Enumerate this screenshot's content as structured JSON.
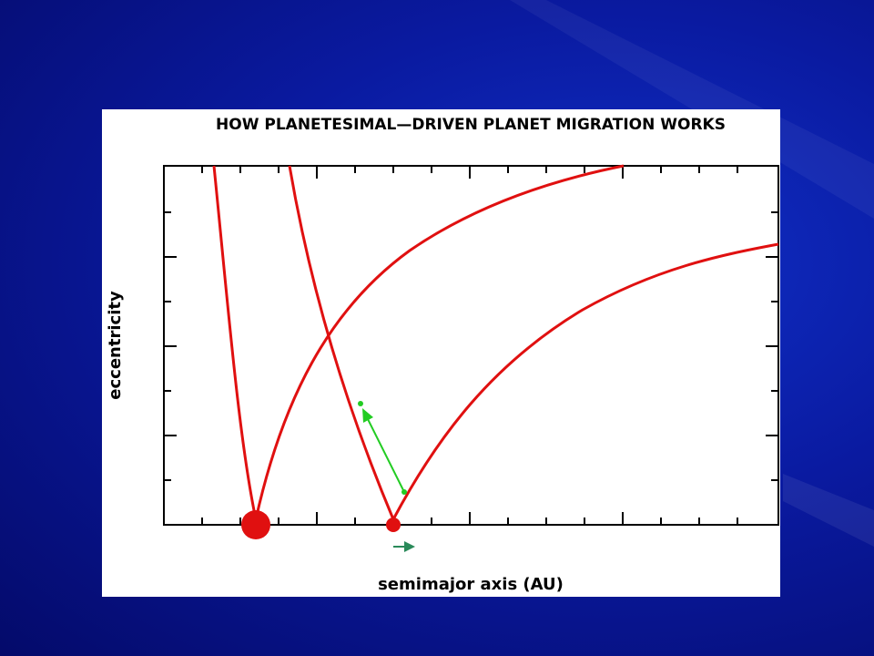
{
  "figure": {
    "title": "HOW PLANETESIMAL—DRIVEN PLANET MIGRATION WORKS",
    "x_label": "semimajor axis (AU)",
    "y_label": "eccentricity"
  }
}
